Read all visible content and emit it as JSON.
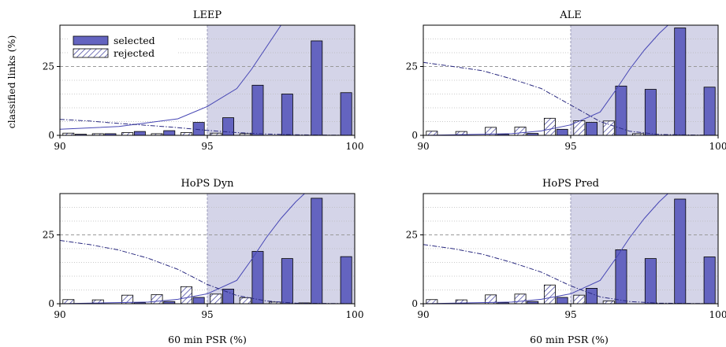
{
  "chart_data": {
    "type": "bar",
    "x_label": "60 min PSR (%)",
    "y_label": "classified links (%)",
    "xlim": [
      90,
      100
    ],
    "ylim": [
      0,
      40
    ],
    "x_ticks": [
      90,
      95,
      100
    ],
    "y_ticks": [
      0,
      25
    ],
    "shaded_region": [
      95,
      100
    ],
    "bin_centers": [
      90.5,
      91.5,
      92.5,
      93.5,
      94.5,
      95.5,
      96.5,
      97.5,
      98.5,
      99.5
    ],
    "colors": {
      "selected": "#6464c0",
      "shade": "#d4d4e8",
      "edge": "#000000"
    },
    "legend": {
      "selected": "selected",
      "rejected": "rejected",
      "placement": "top-left"
    },
    "panels": [
      {
        "title": "LEEP",
        "series": [
          {
            "name": "selected",
            "values": [
              0.4,
              0.6,
              1.4,
              1.7,
              4.7,
              6.4,
              18.2,
              15.0,
              34.3,
              15.5
            ]
          },
          {
            "name": "rejected",
            "values": [
              0.8,
              0.6,
              1.0,
              0.6,
              1.0,
              0.8,
              0.6,
              0,
              0,
              0
            ]
          }
        ],
        "curve_selected": [
          [
            90,
            2.2
          ],
          [
            92,
            3.2
          ],
          [
            94,
            6.0
          ],
          [
            95,
            10.5
          ],
          [
            96,
            17.0
          ],
          [
            96.5,
            24
          ],
          [
            97,
            32
          ],
          [
            97.5,
            40
          ]
        ],
        "curve_rejected": [
          [
            90,
            5.8
          ],
          [
            91,
            5.2
          ],
          [
            92,
            4.3
          ],
          [
            93,
            3.6
          ],
          [
            94,
            2.8
          ],
          [
            95,
            1.8
          ],
          [
            96,
            1.0
          ],
          [
            97,
            0.5
          ],
          [
            98,
            0.2
          ],
          [
            100,
            0
          ]
        ]
      },
      {
        "title": "ALE",
        "series": [
          {
            "name": "selected",
            "values": [
              0,
              0,
              0.4,
              0.7,
              2.2,
              4.7,
              17.9,
              16.7,
              39.0,
              17.5
            ]
          },
          {
            "name": "rejected",
            "values": [
              1.5,
              1.4,
              2.9,
              3.0,
              6.2,
              5.3,
              5.2,
              0.6,
              0,
              0
            ]
          }
        ],
        "curve_selected": [
          [
            90,
            0
          ],
          [
            93,
            0.6
          ],
          [
            94,
            1.6
          ],
          [
            95,
            3.8
          ],
          [
            96,
            8.5
          ],
          [
            96.5,
            16
          ],
          [
            97,
            24
          ],
          [
            97.5,
            31
          ],
          [
            98,
            37
          ],
          [
            98.3,
            40
          ]
        ],
        "curve_rejected": [
          [
            90,
            26.5
          ],
          [
            91,
            25.0
          ],
          [
            92,
            23.5
          ],
          [
            93,
            20.5
          ],
          [
            94,
            17.0
          ],
          [
            95,
            11.0
          ],
          [
            96,
            5.0
          ],
          [
            97,
            1.5
          ],
          [
            98,
            0.3
          ],
          [
            100,
            0
          ]
        ]
      },
      {
        "title": "HoPS Dyn",
        "series": [
          {
            "name": "selected",
            "values": [
              0,
              0,
              0.4,
              0.8,
              2.3,
              5.3,
              19.0,
              16.4,
              38.3,
              17.1
            ]
          },
          {
            "name": "rejected",
            "values": [
              1.5,
              1.4,
              3.1,
              3.3,
              6.2,
              3.5,
              2.2,
              0.6,
              0.3,
              0
            ]
          }
        ],
        "curve_selected": [
          [
            90,
            0
          ],
          [
            93,
            0.6
          ],
          [
            94,
            1.6
          ],
          [
            95,
            3.6
          ],
          [
            96,
            8.5
          ],
          [
            96.5,
            16
          ],
          [
            97,
            24
          ],
          [
            97.5,
            31
          ],
          [
            98,
            37
          ],
          [
            98.3,
            40
          ]
        ],
        "curve_rejected": [
          [
            90,
            23.0
          ],
          [
            91,
            21.5
          ],
          [
            92,
            19.5
          ],
          [
            93,
            16.5
          ],
          [
            94,
            12.5
          ],
          [
            95,
            7.0
          ],
          [
            96,
            3.0
          ],
          [
            97,
            1.0
          ],
          [
            98,
            0.2
          ],
          [
            100,
            0
          ]
        ]
      },
      {
        "title": "HoPS Pred",
        "series": [
          {
            "name": "selected",
            "values": [
              0,
              0,
              0.4,
              0.8,
              2.3,
              5.6,
              19.6,
              16.4,
              38.0,
              17.0
            ]
          },
          {
            "name": "rejected",
            "values": [
              1.5,
              1.4,
              3.2,
              3.5,
              6.8,
              3.1,
              1.0,
              0,
              0,
              0
            ]
          }
        ],
        "curve_selected": [
          [
            90,
            0
          ],
          [
            93,
            0.6
          ],
          [
            94,
            1.6
          ],
          [
            95,
            3.6
          ],
          [
            96,
            8.5
          ],
          [
            96.5,
            16
          ],
          [
            97,
            24
          ],
          [
            97.5,
            31
          ],
          [
            98,
            37
          ],
          [
            98.3,
            40
          ]
        ],
        "curve_rejected": [
          [
            90,
            21.5
          ],
          [
            91,
            20.0
          ],
          [
            92,
            18.0
          ],
          [
            93,
            15.0
          ],
          [
            94,
            11.5
          ],
          [
            95,
            6.5
          ],
          [
            96,
            2.5
          ],
          [
            97,
            0.8
          ],
          [
            98,
            0.2
          ],
          [
            100,
            0
          ]
        ]
      }
    ]
  }
}
